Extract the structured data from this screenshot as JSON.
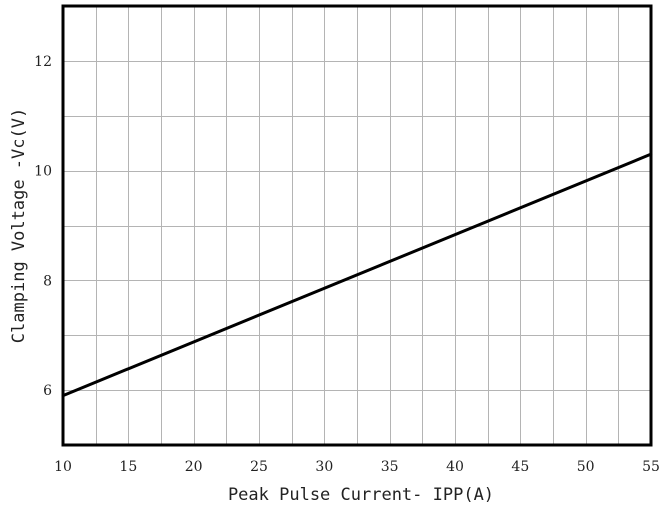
{
  "chart_data": {
    "type": "line",
    "title": "",
    "xlabel": "Peak Pulse Current- IPP(A)",
    "ylabel": "Clamping Voltage -Vc(V)",
    "xlim": [
      10,
      55
    ],
    "ylim": [
      5,
      13
    ],
    "xticks": [
      10,
      15,
      20,
      25,
      30,
      35,
      40,
      45,
      50,
      55
    ],
    "yticks": [
      6,
      8,
      10,
      12
    ],
    "x_minor_step": 2.5,
    "y_minor_step": 1,
    "grid": true,
    "series": [
      {
        "x": [
          10,
          55
        ],
        "y": [
          5.9,
          10.3
        ]
      }
    ]
  }
}
